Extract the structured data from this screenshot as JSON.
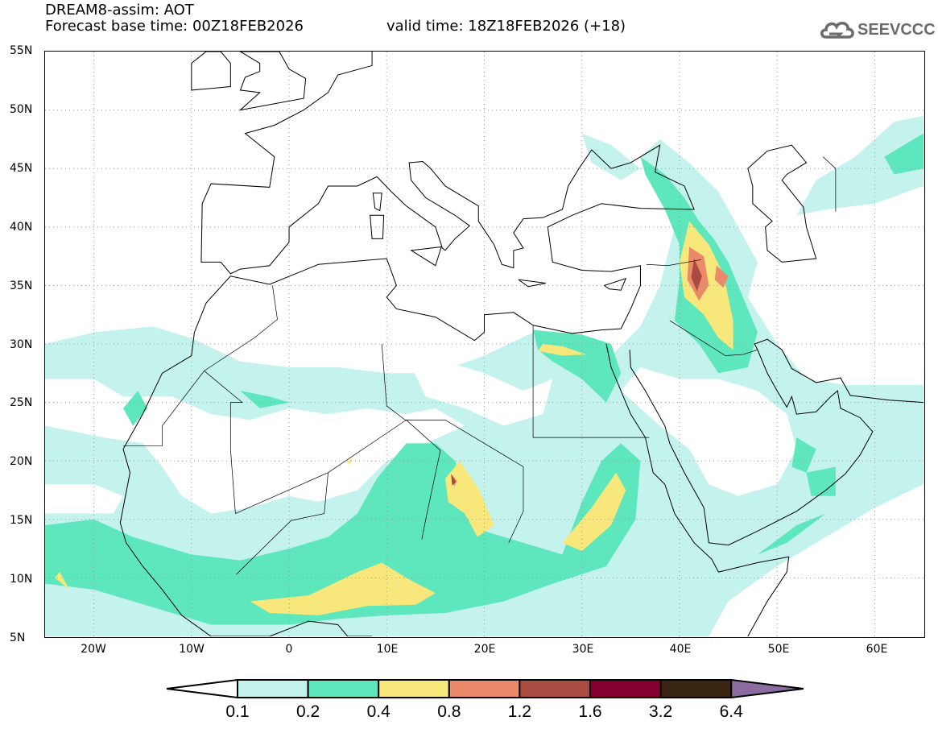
{
  "header": {
    "title": "DREAM8-assim: AOT",
    "base_time": "Forecast base time: 00Z18FEB2026",
    "valid_time": "valid time: 18Z18FEB2026 (+18)"
  },
  "logo": {
    "text": "SEEVCCC",
    "icon": "cloud-icon"
  },
  "map": {
    "lat_labels": [
      "55N",
      "50N",
      "45N",
      "40N",
      "35N",
      "30N",
      "25N",
      "20N",
      "15N",
      "10N",
      "5N"
    ],
    "lon_labels": [
      "20W",
      "10W",
      "0",
      "10E",
      "20E",
      "30E",
      "40E",
      "50E",
      "60E"
    ],
    "extent": {
      "lon": [
        -25,
        65
      ],
      "lat": [
        5,
        55
      ]
    }
  },
  "colorbar": {
    "labels": [
      "0.1",
      "0.2",
      "0.4",
      "0.8",
      "1.2",
      "1.6",
      "3.2",
      "6.4"
    ],
    "colors": [
      "#ffffff",
      "#c4f2ec",
      "#5ee6bc",
      "#f8e77a",
      "#ea8a6a",
      "#a94b40",
      "#850030",
      "#3a2412",
      "#8e6ca2"
    ]
  }
}
